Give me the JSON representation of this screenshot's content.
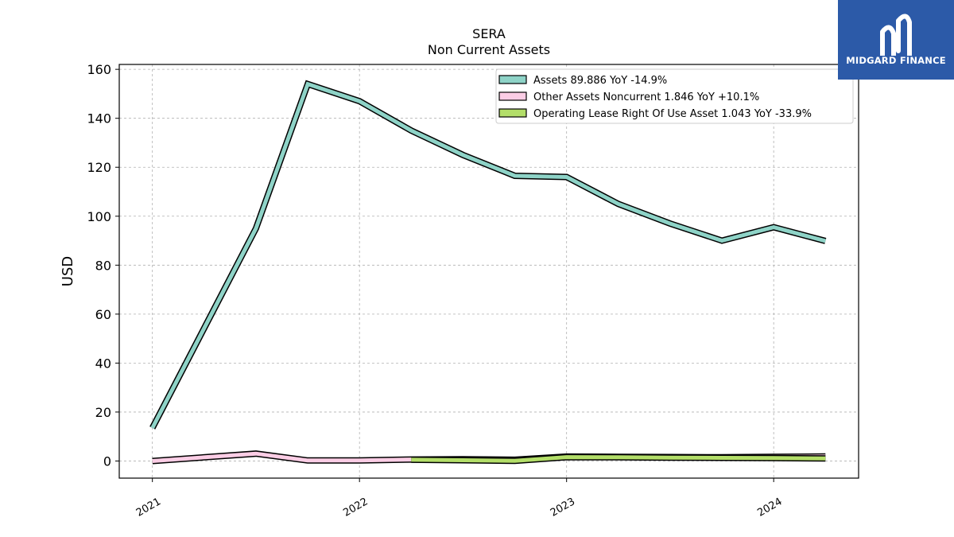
{
  "branding": {
    "logo_text": "MIDGARD FINANCE",
    "logo_icon": "midgard-m-logo-icon",
    "logo_bg_color": "#2c5aa8"
  },
  "chart_data": {
    "type": "line",
    "title": "SERA",
    "subtitle": "Non Current  Assets",
    "xlabel": "",
    "ylabel": "USD",
    "ylim": [
      -7,
      162
    ],
    "xlim": [
      2020.84,
      2024.41
    ],
    "yticks": [
      0,
      20,
      40,
      60,
      80,
      100,
      120,
      140,
      160
    ],
    "yticklabels": [
      "0",
      "20",
      "40",
      "60",
      "80",
      "100",
      "120",
      "140",
      "160"
    ],
    "xticks": [
      2021.0,
      2022.0,
      2023.0,
      2024.0
    ],
    "xticklabels": [
      "2021",
      "2022",
      "2023",
      "2024"
    ],
    "grid": true,
    "legend_position": "top-right",
    "series": [
      {
        "name": "Assets  89.886 YoY -14.9%",
        "color": "#8ed3c7",
        "x": [
          2021.0,
          2021.5,
          2021.75,
          2022.0,
          2022.25,
          2022.5,
          2022.75,
          2023.0,
          2023.25,
          2023.5,
          2023.75,
          2024.0,
          2024.25
        ],
        "values": [
          13.5,
          95.0,
          154.0,
          147.0,
          135.0,
          125.0,
          116.5,
          116.0,
          105.0,
          97.0,
          90.0,
          95.5,
          89.886
        ]
      },
      {
        "name": "Other Assets Noncurrent  1.846 YoY +10.1%",
        "color": "#fbcde5",
        "x": [
          2021.0,
          2021.5,
          2021.75,
          2022.0,
          2022.25,
          2022.5,
          2022.75,
          2023.0,
          2023.25,
          2023.5,
          2023.75,
          2024.0,
          2024.25
        ],
        "values": [
          0.0,
          3.0,
          0.2,
          0.2,
          0.6,
          0.7,
          0.5,
          1.8,
          1.7,
          1.6,
          1.5,
          1.68,
          1.846
        ]
      },
      {
        "name": "Operating Lease Right Of Use Asset  1.043 YoY -33.9%",
        "color": "#b3de69",
        "x": [
          2022.25,
          2022.5,
          2022.75,
          2023.0,
          2023.25,
          2023.5,
          2023.75,
          2024.0,
          2024.25
        ],
        "values": [
          0.5,
          0.3,
          0.1,
          1.58,
          1.5,
          1.4,
          1.3,
          1.2,
          1.043
        ]
      }
    ]
  }
}
